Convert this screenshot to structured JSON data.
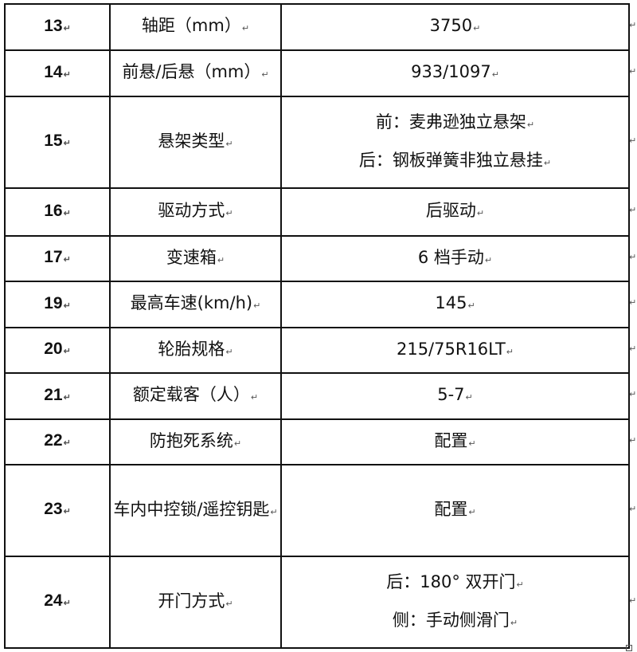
{
  "rows": [
    {
      "no": "13",
      "item": "轴距（mm）",
      "value": [
        "3750"
      ]
    },
    {
      "no": "14",
      "item": "前悬/后悬（mm）",
      "value": [
        "933/1097"
      ]
    },
    {
      "no": "15",
      "item": "悬架类型",
      "value": [
        "前：麦弗逊独立悬架",
        "后：钢板弹簧非独立悬挂"
      ]
    },
    {
      "no": "16",
      "item": "驱动方式",
      "value": [
        "后驱动"
      ]
    },
    {
      "no": "17",
      "item": "变速箱",
      "value": [
        "6 档手动"
      ]
    },
    {
      "no": "19",
      "item": "最高车速(km/h)",
      "value": [
        "145"
      ]
    },
    {
      "no": "20",
      "item": "轮胎规格",
      "value": [
        "215/75R16LT"
      ]
    },
    {
      "no": "21",
      "item": "额定载客（人）",
      "value": [
        "5-7"
      ]
    },
    {
      "no": "22",
      "item": "防抱死系统",
      "value": [
        "配置"
      ]
    },
    {
      "no": "23",
      "item": "车内中控锁/遥控钥匙",
      "value": [
        "配置"
      ]
    },
    {
      "no": "24",
      "item": "开门方式",
      "value": [
        "后：180° 双开门",
        "侧：手动侧滑门"
      ]
    }
  ],
  "paragraph_mark": "↵"
}
